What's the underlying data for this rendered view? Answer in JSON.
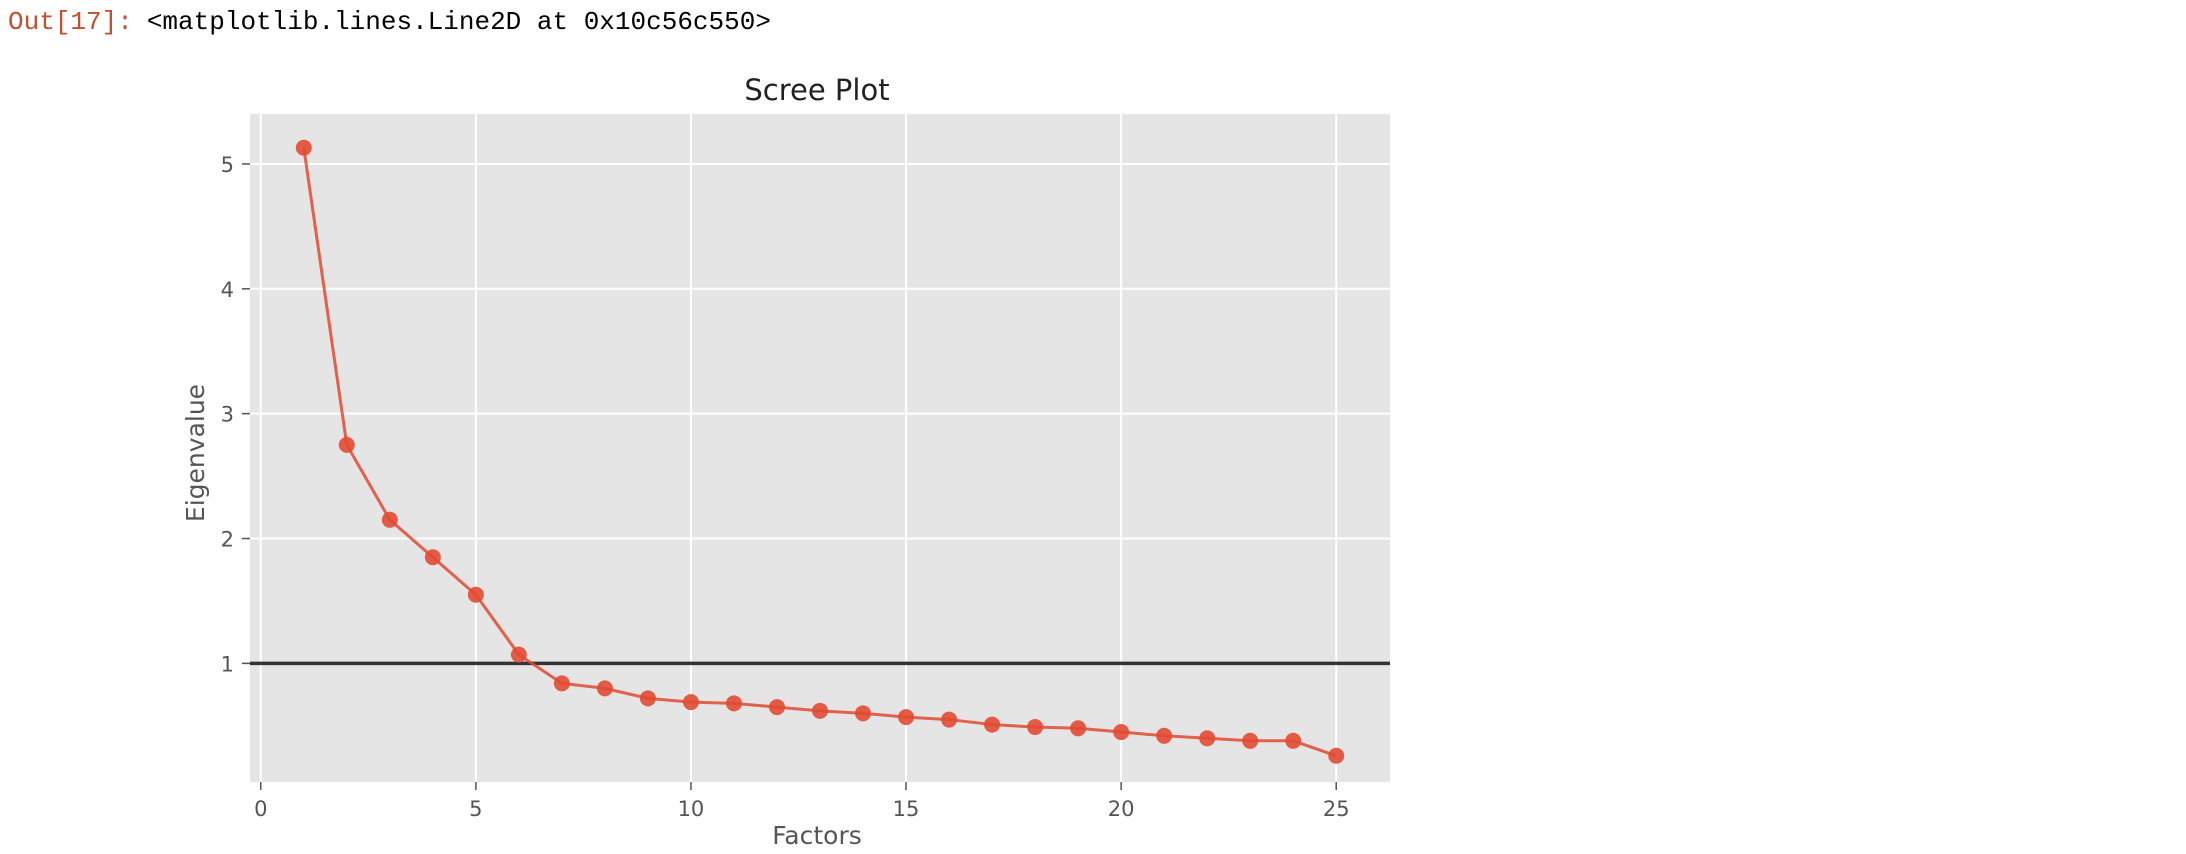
{
  "output": {
    "prompt": "Out[17]:",
    "text": "<matplotlib.lines.Line2D at 0x10c56c550>"
  },
  "colors": {
    "prompt": "#c0502e",
    "plot_background": "#e5e5e5",
    "grid": "#ffffff",
    "series": "#e24a33",
    "hline": "#333333",
    "tick_text": "#555555"
  },
  "chart_data": {
    "type": "line",
    "title": "Scree Plot",
    "xlabel": "Factors",
    "ylabel": "Eigenvalue",
    "xlim": [
      -0.25,
      26.25
    ],
    "ylim": [
      0.05,
      5.4
    ],
    "xticks": [
      0,
      5,
      10,
      15,
      20,
      25
    ],
    "yticks": [
      1,
      2,
      3,
      4,
      5
    ],
    "grid": true,
    "marker": "circle",
    "hline": 1,
    "series": [
      {
        "x": [
          1,
          2,
          3,
          4,
          5,
          6,
          7,
          8,
          9,
          10,
          11,
          12,
          13,
          14,
          15,
          16,
          17,
          18,
          19,
          20,
          21,
          22,
          23,
          24,
          25
        ],
        "values": [
          5.13,
          2.75,
          2.15,
          1.85,
          1.55,
          1.07,
          0.84,
          0.8,
          0.72,
          0.69,
          0.68,
          0.65,
          0.62,
          0.6,
          0.57,
          0.55,
          0.51,
          0.49,
          0.48,
          0.45,
          0.42,
          0.4,
          0.38,
          0.38,
          0.26
        ]
      }
    ]
  }
}
